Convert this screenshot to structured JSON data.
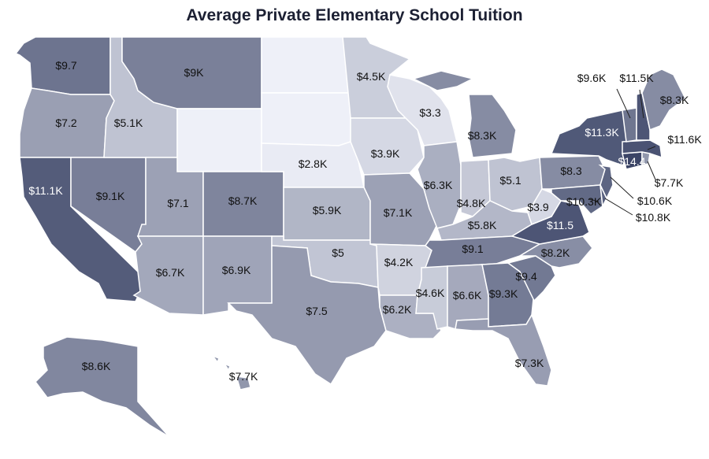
{
  "title": "Average Private Elementary School Tuition",
  "colors": {
    "min": "#eef0f8",
    "max": "#3b4466",
    "border": "#ffffff",
    "text_dark": "#111111",
    "text_light": "#ffffff"
  },
  "chart_data": {
    "type": "choropleth",
    "title": "Average Private Elementary School Tuition",
    "states": [
      {
        "id": "WA",
        "label": "$9.7",
        "value": 9.7
      },
      {
        "id": "OR",
        "label": "$7.2",
        "value": 7.2
      },
      {
        "id": "CA",
        "label": "$11.1K",
        "value": 11.1
      },
      {
        "id": "NV",
        "label": "$9.1K",
        "value": 9.1
      },
      {
        "id": "ID",
        "label": "$5.1K",
        "value": 5.1
      },
      {
        "id": "MT",
        "label": "$9K",
        "value": 9.0
      },
      {
        "id": "WY",
        "label": "",
        "value": null
      },
      {
        "id": "UT",
        "label": "$7.1",
        "value": 7.1
      },
      {
        "id": "CO",
        "label": "$8.7K",
        "value": 8.7
      },
      {
        "id": "AZ",
        "label": "$6.7K",
        "value": 6.7
      },
      {
        "id": "NM",
        "label": "$6.9K",
        "value": 6.9
      },
      {
        "id": "ND",
        "label": "",
        "value": null
      },
      {
        "id": "SD",
        "label": "",
        "value": null
      },
      {
        "id": "NE",
        "label": "$2.8K",
        "value": 2.8
      },
      {
        "id": "KS",
        "label": "$5.9K",
        "value": 5.9
      },
      {
        "id": "OK",
        "label": "$5",
        "value": 5.0
      },
      {
        "id": "TX",
        "label": "$7.5",
        "value": 7.5
      },
      {
        "id": "MN",
        "label": "$4.5K",
        "value": 4.5
      },
      {
        "id": "IA",
        "label": "$3.9K",
        "value": 3.9
      },
      {
        "id": "MO",
        "label": "$7.1K",
        "value": 7.1
      },
      {
        "id": "AR",
        "label": "$4.2K",
        "value": 4.2
      },
      {
        "id": "LA",
        "label": "$6.2K",
        "value": 6.2
      },
      {
        "id": "WI",
        "label": "$3.3",
        "value": 3.3
      },
      {
        "id": "IL",
        "label": "$6.3K",
        "value": 6.3
      },
      {
        "id": "MI",
        "label": "$8.3K",
        "value": 8.3
      },
      {
        "id": "IN",
        "label": "$4.8K",
        "value": 4.8
      },
      {
        "id": "OH",
        "label": "$5.1",
        "value": 5.1
      },
      {
        "id": "KY",
        "label": "$5.8K",
        "value": 5.8
      },
      {
        "id": "TN",
        "label": "$9.1",
        "value": 9.1
      },
      {
        "id": "MS",
        "label": "$4.6K",
        "value": 4.6
      },
      {
        "id": "AL",
        "label": "$6.6K",
        "value": 6.6
      },
      {
        "id": "GA",
        "label": "$9.3K",
        "value": 9.3
      },
      {
        "id": "FL",
        "label": "$7.3K",
        "value": 7.3
      },
      {
        "id": "SC",
        "label": "$9.4",
        "value": 9.4
      },
      {
        "id": "NC",
        "label": "$8.2K",
        "value": 8.2
      },
      {
        "id": "VA",
        "label": "$11.5",
        "value": 11.5
      },
      {
        "id": "WV",
        "label": "$3.9",
        "value": 3.9
      },
      {
        "id": "PA",
        "label": "$8.3",
        "value": 8.3
      },
      {
        "id": "NY",
        "label": "$11.3K",
        "value": 11.3
      },
      {
        "id": "MD",
        "label": "$10.3K",
        "value": 10.3
      },
      {
        "id": "NJ",
        "label": "$10.6K",
        "value": 10.6
      },
      {
        "id": "DE",
        "label": "$10.8K",
        "value": 10.8
      },
      {
        "id": "CT",
        "label": "$14.4",
        "value": 14.4
      },
      {
        "id": "RI",
        "label": "$7.7K",
        "value": 7.7
      },
      {
        "id": "MA",
        "label": "$11.6K",
        "value": 11.6
      },
      {
        "id": "VT",
        "label": "$9.6K",
        "value": 9.6
      },
      {
        "id": "NH",
        "label": "$11.5K",
        "value": 11.5
      },
      {
        "id": "ME",
        "label": "$8.3K",
        "value": 8.3
      },
      {
        "id": "AK",
        "label": "$8.6K",
        "value": 8.6
      },
      {
        "id": "HI",
        "label": "$7.7K",
        "value": 7.7
      }
    ]
  }
}
